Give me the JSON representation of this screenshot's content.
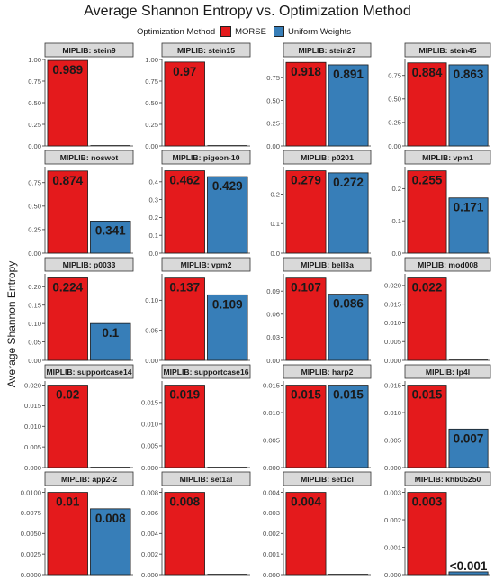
{
  "chart_data": {
    "type": "bar",
    "title": "Average Shannon Entropy vs. Optimization Method",
    "ylabel": "Average Shannon Entropy",
    "xlabel": "",
    "legend": {
      "title": "Optimization Method",
      "placement": "top",
      "items": [
        {
          "name": "MORSE",
          "color": "#e41a1c"
        },
        {
          "name": "Uniform Weights",
          "color": "#377eb8"
        }
      ]
    },
    "facet_prefix": "MIPLIB: ",
    "grid": false,
    "panels": [
      {
        "name": "stein9",
        "ylim": [
          0,
          1.0
        ],
        "ticks": [
          "0.00",
          "0.25",
          "0.50",
          "0.75",
          "1.00"
        ],
        "tick_values": [
          0,
          0.25,
          0.5,
          0.75,
          1.0
        ],
        "values": [
          0.989,
          0.0
        ],
        "labels": [
          "0.989",
          ""
        ]
      },
      {
        "name": "stein15",
        "ylim": [
          0,
          1.0
        ],
        "ticks": [
          "0.00",
          "0.25",
          "0.50",
          "0.75",
          "1.00"
        ],
        "tick_values": [
          0,
          0.25,
          0.5,
          0.75,
          1.0
        ],
        "values": [
          0.97,
          0.0
        ],
        "labels": [
          "0.97",
          ""
        ]
      },
      {
        "name": "stein27",
        "ylim": [
          0,
          0.95
        ],
        "ticks": [
          "0.00",
          "0.25",
          "0.50",
          "0.75"
        ],
        "tick_values": [
          0,
          0.25,
          0.5,
          0.75
        ],
        "values": [
          0.918,
          0.891
        ],
        "labels": [
          "0.918",
          "0.891"
        ]
      },
      {
        "name": "stein45",
        "ylim": [
          0,
          0.92
        ],
        "ticks": [
          "0.00",
          "0.25",
          "0.50",
          "0.75"
        ],
        "tick_values": [
          0,
          0.25,
          0.5,
          0.75
        ],
        "values": [
          0.884,
          0.863
        ],
        "labels": [
          "0.884",
          "0.863"
        ]
      },
      {
        "name": "noswot",
        "ylim": [
          0,
          0.92
        ],
        "ticks": [
          "0.00",
          "0.25",
          "0.50",
          "0.75"
        ],
        "tick_values": [
          0,
          0.25,
          0.5,
          0.75
        ],
        "values": [
          0.874,
          0.341
        ],
        "labels": [
          "0.874",
          "0.341"
        ]
      },
      {
        "name": "pigeon-10",
        "ylim": [
          0,
          0.485
        ],
        "ticks": [
          "0.0",
          "0.1",
          "0.2",
          "0.3",
          "0.4"
        ],
        "tick_values": [
          0,
          0.1,
          0.2,
          0.3,
          0.4
        ],
        "values": [
          0.462,
          0.429
        ],
        "labels": [
          "0.462",
          "0.429"
        ]
      },
      {
        "name": "p0201",
        "ylim": [
          0,
          0.293
        ],
        "ticks": [
          "0.0",
          "0.1",
          "0.2"
        ],
        "tick_values": [
          0,
          0.1,
          0.2
        ],
        "values": [
          0.279,
          0.272
        ],
        "labels": [
          "0.279",
          "0.272"
        ]
      },
      {
        "name": "vpm1",
        "ylim": [
          0,
          0.268
        ],
        "ticks": [
          "0.0",
          "0.1",
          "0.2"
        ],
        "tick_values": [
          0,
          0.1,
          0.2
        ],
        "values": [
          0.255,
          0.171
        ],
        "labels": [
          "0.255",
          "0.171"
        ]
      },
      {
        "name": "p0033",
        "ylim": [
          0,
          0.235
        ],
        "ticks": [
          "0.00",
          "0.05",
          "0.10",
          "0.15",
          "0.20"
        ],
        "tick_values": [
          0,
          0.05,
          0.1,
          0.15,
          0.2
        ],
        "values": [
          0.224,
          0.1
        ],
        "labels": [
          "0.224",
          "0.1"
        ]
      },
      {
        "name": "vpm2",
        "ylim": [
          0,
          0.144
        ],
        "ticks": [
          "0.00",
          "0.05",
          "0.10"
        ],
        "tick_values": [
          0,
          0.05,
          0.1
        ],
        "values": [
          0.137,
          0.109
        ],
        "labels": [
          "0.137",
          "0.109"
        ]
      },
      {
        "name": "bell3a",
        "ylim": [
          0,
          0.1125
        ],
        "ticks": [
          "0.00",
          "0.03",
          "0.06",
          "0.09"
        ],
        "tick_values": [
          0,
          0.03,
          0.06,
          0.09
        ],
        "values": [
          0.107,
          0.086
        ],
        "labels": [
          "0.107",
          "0.086"
        ]
      },
      {
        "name": "mod008",
        "ylim": [
          0,
          0.0231
        ],
        "ticks": [
          "0.000",
          "0.005",
          "0.010",
          "0.015",
          "0.020"
        ],
        "tick_values": [
          0,
          0.005,
          0.01,
          0.015,
          0.02
        ],
        "values": [
          0.022,
          0.0
        ],
        "labels": [
          "0.022",
          ""
        ]
      },
      {
        "name": "supportcase14",
        "ylim": [
          0,
          0.021
        ],
        "ticks": [
          "0.000",
          "0.005",
          "0.010",
          "0.015",
          "0.020"
        ],
        "tick_values": [
          0,
          0.005,
          0.01,
          0.015,
          0.02
        ],
        "values": [
          0.02,
          0.0
        ],
        "labels": [
          "0.02",
          ""
        ]
      },
      {
        "name": "supportcase16",
        "ylim": [
          0,
          0.01995
        ],
        "ticks": [
          "0.000",
          "0.005",
          "0.010",
          "0.015"
        ],
        "tick_values": [
          0,
          0.005,
          0.01,
          0.015
        ],
        "values": [
          0.019,
          0.0
        ],
        "labels": [
          "0.019",
          ""
        ]
      },
      {
        "name": "harp2",
        "ylim": [
          0,
          0.01575
        ],
        "ticks": [
          "0.000",
          "0.005",
          "0.010",
          "0.015"
        ],
        "tick_values": [
          0,
          0.005,
          0.01,
          0.015
        ],
        "values": [
          0.015,
          0.015
        ],
        "labels": [
          "0.015",
          "0.015"
        ]
      },
      {
        "name": "lp4l",
        "ylim": [
          0,
          0.01575
        ],
        "ticks": [
          "0.000",
          "0.005",
          "0.010",
          "0.015"
        ],
        "tick_values": [
          0,
          0.005,
          0.01,
          0.015
        ],
        "values": [
          0.015,
          0.007
        ],
        "labels": [
          "0.015",
          "0.007"
        ]
      },
      {
        "name": "app2-2",
        "ylim": [
          0,
          0.0105
        ],
        "ticks": [
          "0.0000",
          "0.0025",
          "0.0050",
          "0.0075",
          "0.0100"
        ],
        "tick_values": [
          0,
          0.0025,
          0.005,
          0.0075,
          0.01
        ],
        "values": [
          0.01,
          0.008
        ],
        "labels": [
          "0.01",
          "0.008"
        ]
      },
      {
        "name": "set1al",
        "ylim": [
          0,
          0.0084
        ],
        "ticks": [
          "0.000",
          "0.002",
          "0.004",
          "0.006",
          "0.008"
        ],
        "tick_values": [
          0,
          0.002,
          0.004,
          0.006,
          0.008
        ],
        "values": [
          0.008,
          0.0
        ],
        "labels": [
          "0.008",
          ""
        ]
      },
      {
        "name": "set1cl",
        "ylim": [
          0,
          0.0042
        ],
        "ticks": [
          "0.000",
          "0.001",
          "0.002",
          "0.003",
          "0.004"
        ],
        "tick_values": [
          0,
          0.001,
          0.002,
          0.003,
          0.004
        ],
        "values": [
          0.004,
          0.0
        ],
        "labels": [
          "0.004",
          ""
        ]
      },
      {
        "name": "khb05250",
        "ylim": [
          0,
          0.00315
        ],
        "ticks": [
          "0.000",
          "0.001",
          "0.002",
          "0.003"
        ],
        "tick_values": [
          0,
          0.001,
          0.002,
          0.003
        ],
        "values": [
          0.003,
          0.0001
        ],
        "labels": [
          "0.003",
          "<0.001"
        ]
      }
    ]
  }
}
